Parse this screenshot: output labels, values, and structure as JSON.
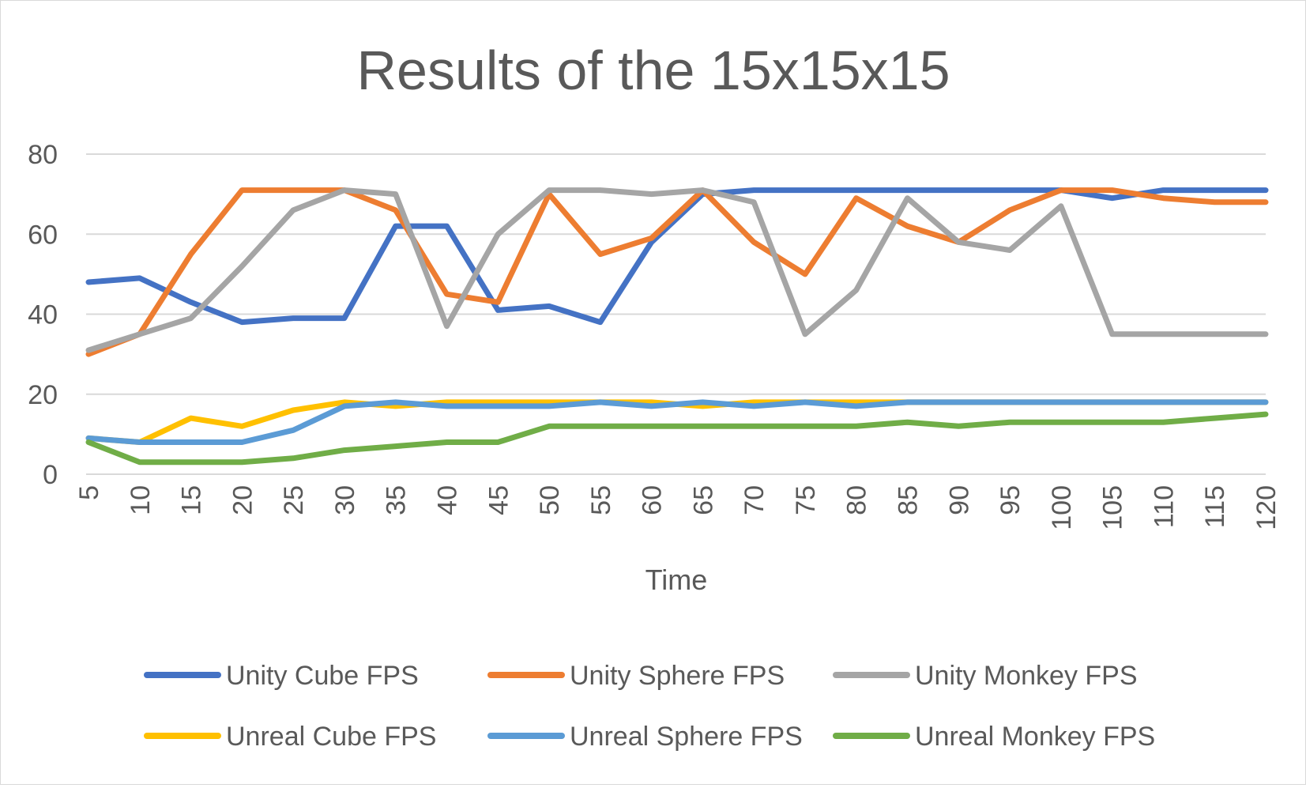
{
  "chart_data": {
    "type": "line",
    "title": "Results of the 15x15x15",
    "xlabel": "Time",
    "ylabel": "",
    "ylim": [
      0,
      80
    ],
    "y_ticks": [
      0,
      20,
      40,
      60,
      80
    ],
    "grid": true,
    "legend_position": "bottom",
    "x": [
      5,
      10,
      15,
      20,
      25,
      30,
      35,
      40,
      45,
      50,
      55,
      60,
      65,
      70,
      75,
      80,
      85,
      90,
      95,
      100,
      105,
      110,
      115,
      120
    ],
    "series": [
      {
        "name": "Unity Cube FPS",
        "color": "#4472c4",
        "values": [
          48,
          49,
          43,
          38,
          39,
          39,
          62,
          62,
          41,
          42,
          38,
          58,
          70,
          71,
          71,
          71,
          71,
          71,
          71,
          71,
          69,
          71,
          71,
          71
        ]
      },
      {
        "name": "Unity Sphere FPS",
        "color": "#ed7d31",
        "values": [
          30,
          35,
          55,
          71,
          71,
          71,
          66,
          45,
          43,
          70,
          55,
          59,
          71,
          58,
          50,
          69,
          62,
          58,
          66,
          71,
          71,
          69,
          68,
          68
        ]
      },
      {
        "name": "Unity Monkey FPS",
        "color": "#a5a5a5",
        "values": [
          31,
          35,
          39,
          52,
          66,
          71,
          70,
          37,
          60,
          71,
          71,
          70,
          71,
          68,
          35,
          46,
          69,
          58,
          56,
          67,
          35,
          35,
          35,
          35
        ]
      },
      {
        "name": "Unreal Cube FPS",
        "color": "#ffc000",
        "values": [
          9,
          8,
          14,
          12,
          16,
          18,
          17,
          18,
          18,
          18,
          18,
          18,
          17,
          18,
          18,
          18,
          18,
          18,
          18,
          18,
          18,
          18,
          18,
          18
        ]
      },
      {
        "name": "Unreal Sphere FPS",
        "color": "#5b9bd5",
        "values": [
          9,
          8,
          8,
          8,
          11,
          17,
          18,
          17,
          17,
          17,
          18,
          17,
          18,
          17,
          18,
          17,
          18,
          18,
          18,
          18,
          18,
          18,
          18,
          18
        ]
      },
      {
        "name": "Unreal Monkey FPS",
        "color": "#70ad47",
        "values": [
          8,
          3,
          3,
          3,
          4,
          6,
          7,
          8,
          8,
          12,
          12,
          12,
          12,
          12,
          12,
          12,
          13,
          12,
          13,
          13,
          13,
          13,
          14,
          15
        ]
      }
    ]
  }
}
